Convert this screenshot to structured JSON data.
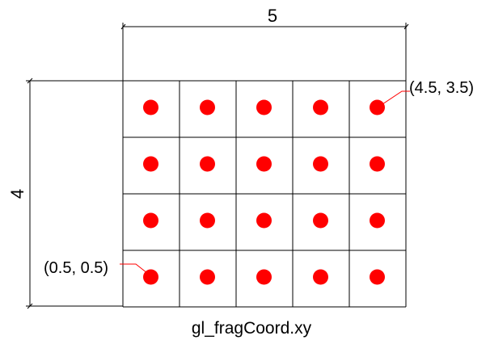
{
  "diagram": {
    "width_label": "5",
    "height_label": "4",
    "caption": "gl_fragCoord.xy",
    "grid": {
      "columns": 5,
      "rows": 4
    },
    "annotations": {
      "top_right": "(4.5, 3.5)",
      "bottom_left": "(0.5, 0.5)"
    },
    "colors": {
      "line": "#000000",
      "dot": "#ff0000",
      "leader": "#ff0000"
    }
  }
}
